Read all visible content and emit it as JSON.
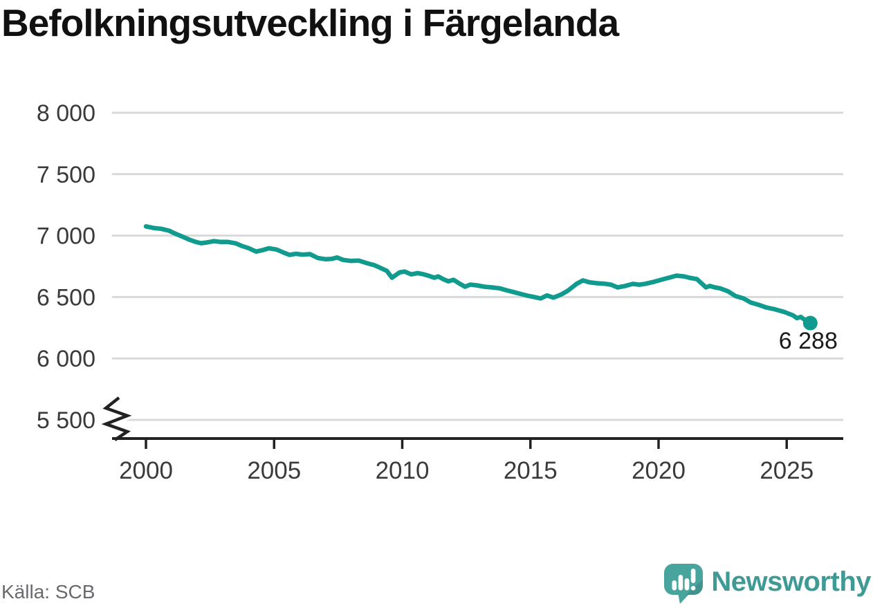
{
  "title": "Befolkningsutveckling i Färgelanda",
  "source": "Källa: SCB",
  "logo": {
    "name": "Newsworthy"
  },
  "colors": {
    "line": "#119A8E",
    "grid": "#D9D9D9",
    "axis": "#222222",
    "tick_text": "#3A3A3A",
    "title_text": "#111111",
    "source_text": "#696970",
    "end_label_text": "#1A1A1A",
    "logo_bubble": "#48A59E",
    "logo_text": "#3E9A94"
  },
  "chart_data": {
    "type": "line",
    "title": "Befolkningsutveckling i Färgelanda",
    "end_label": "6 288",
    "end_value": 6288,
    "x_ticks": [
      2000,
      2005,
      2010,
      2015,
      2020,
      2025
    ],
    "x_tick_labels": [
      "2000",
      "2005",
      "2010",
      "2015",
      "2020",
      "2025"
    ],
    "y_ticks": [
      8000,
      7500,
      7000,
      6500,
      6000,
      5500
    ],
    "y_tick_labels": [
      "8 000",
      "7 500",
      "7 000",
      "6 500",
      "6 000",
      "5 500"
    ],
    "ylim": [
      5500,
      8000
    ],
    "xlim": [
      2000,
      2027.2
    ],
    "grid": "horizontal",
    "axis_break": true,
    "x": [
      2000.0,
      2000.3,
      2000.6,
      2000.9,
      2001.15,
      2001.4,
      2001.7,
      2001.95,
      2002.15,
      2002.4,
      2002.65,
      2002.9,
      2003.2,
      2003.5,
      2003.75,
      2004.0,
      2004.3,
      2004.55,
      2004.8,
      2005.1,
      2005.35,
      2005.6,
      2005.85,
      2006.1,
      2006.4,
      2006.7,
      2007.0,
      2007.25,
      2007.45,
      2007.7,
      2008.0,
      2008.3,
      2008.6,
      2008.9,
      2009.15,
      2009.4,
      2009.6,
      2009.9,
      2010.1,
      2010.35,
      2010.6,
      2010.85,
      2011.05,
      2011.25,
      2011.4,
      2011.6,
      2011.8,
      2012.0,
      2012.25,
      2012.45,
      2012.65,
      2012.9,
      2013.2,
      2013.5,
      2013.8,
      2014.05,
      2014.3,
      2014.6,
      2014.9,
      2015.15,
      2015.4,
      2015.65,
      2015.9,
      2016.2,
      2016.45,
      2016.8,
      2017.05,
      2017.3,
      2017.6,
      2017.9,
      2018.15,
      2018.4,
      2018.7,
      2019.0,
      2019.25,
      2019.5,
      2019.8,
      2020.1,
      2020.45,
      2020.7,
      2021.0,
      2021.2,
      2021.5,
      2021.7,
      2021.85,
      2022.0,
      2022.2,
      2022.4,
      2022.7,
      2023.0,
      2023.3,
      2023.6,
      2023.9,
      2024.2,
      2024.5,
      2024.7,
      2024.9,
      2025.1,
      2025.25,
      2025.4,
      2025.55,
      2025.7,
      2025.92
    ],
    "y": [
      7075,
      7062,
      7055,
      7040,
      7015,
      6994,
      6966,
      6948,
      6938,
      6945,
      6955,
      6949,
      6948,
      6937,
      6915,
      6898,
      6870,
      6882,
      6897,
      6886,
      6864,
      6843,
      6852,
      6845,
      6849,
      6818,
      6808,
      6810,
      6822,
      6802,
      6794,
      6797,
      6777,
      6760,
      6737,
      6712,
      6657,
      6701,
      6707,
      6684,
      6695,
      6684,
      6672,
      6657,
      6668,
      6645,
      6628,
      6640,
      6607,
      6584,
      6601,
      6595,
      6584,
      6578,
      6571,
      6556,
      6543,
      6526,
      6510,
      6500,
      6488,
      6513,
      6495,
      6520,
      6550,
      6607,
      6635,
      6620,
      6612,
      6608,
      6600,
      6578,
      6590,
      6607,
      6600,
      6608,
      6623,
      6640,
      6660,
      6674,
      6668,
      6657,
      6645,
      6607,
      6578,
      6590,
      6578,
      6571,
      6548,
      6508,
      6490,
      6455,
      6437,
      6415,
      6402,
      6390,
      6379,
      6362,
      6350,
      6328,
      6338,
      6315,
      6288
    ]
  }
}
